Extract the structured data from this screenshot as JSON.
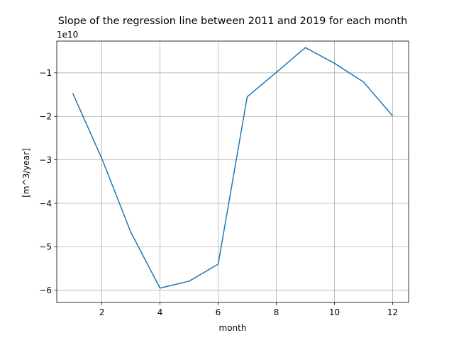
{
  "chart_data": {
    "type": "line",
    "title": "Slope of the regression line  between 2011 and 2019 for each month",
    "xlabel": "month",
    "ylabel": "[m^3/year]",
    "y_offset_label": "1e10",
    "y_scale_factor": 10000000000,
    "xlim": [
      0.45,
      12.55
    ],
    "ylim": [
      -6.28,
      -0.27
    ],
    "x_ticks": [
      2,
      4,
      6,
      8,
      10,
      12
    ],
    "x_tick_labels": [
      "2",
      "4",
      "6",
      "8",
      "10",
      "12"
    ],
    "y_ticks": [
      -6,
      -5,
      -4,
      -3,
      -2,
      -1
    ],
    "y_tick_labels": [
      "−6",
      "−5",
      "−4",
      "−3",
      "−2",
      "−1"
    ],
    "grid": true,
    "colors": {
      "line": "#1f77b4",
      "grid": "#b0b0b0",
      "axis": "#000000"
    },
    "series": [
      {
        "x": [
          1,
          2,
          3,
          4,
          5,
          6,
          7,
          8,
          9,
          10,
          11,
          12
        ],
        "y": [
          -1.47,
          -2.97,
          -4.67,
          -5.95,
          -5.79,
          -5.4,
          -1.55,
          -0.99,
          -0.42,
          -0.78,
          -1.21,
          -1.99
        ]
      }
    ]
  }
}
